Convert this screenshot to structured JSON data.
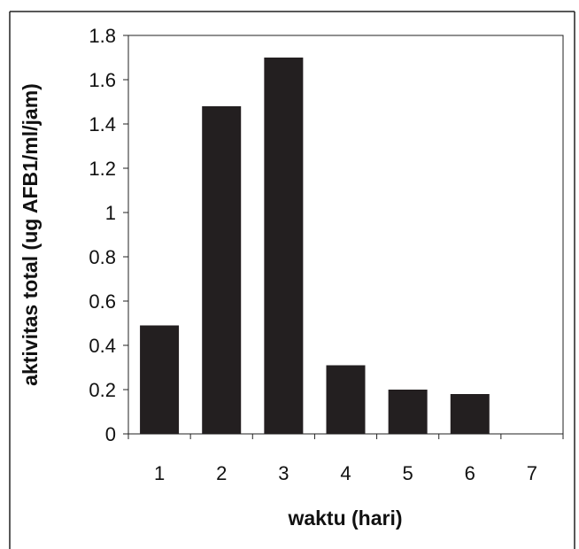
{
  "chart_data": {
    "type": "bar",
    "title": "",
    "xlabel": "waktu (hari)",
    "ylabel": "aktivitas total (ug AFB1/ml/jam)",
    "categories": [
      "1",
      "2",
      "3",
      "4",
      "5",
      "6",
      "7"
    ],
    "values": [
      0.49,
      1.48,
      1.7,
      0.31,
      0.2,
      0.18,
      0
    ],
    "ylim": [
      0,
      1.8
    ],
    "yticks": [
      "0",
      "0.2",
      "0.4",
      "0.6",
      "0.8",
      "1",
      "1.2",
      "1.4",
      "1.6",
      "1.8"
    ],
    "grid": false,
    "legend": "none",
    "bar_color": "#231f20"
  }
}
